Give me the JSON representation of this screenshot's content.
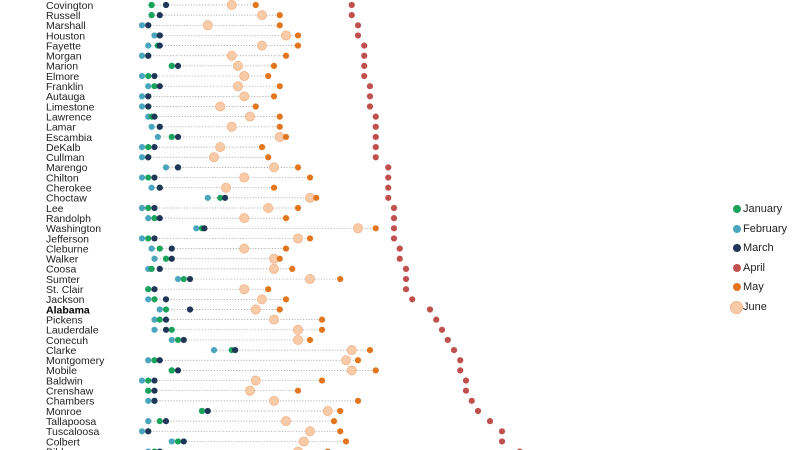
{
  "chart_data": {
    "type": "scatter",
    "title": "",
    "xlabel": "",
    "ylabel": "",
    "xlim": [
      0,
      100
    ],
    "legend_position": "right",
    "categories": [
      "Covington",
      "Russell",
      "Marshall",
      "Houston",
      "Fayette",
      "Morgan",
      "Marion",
      "Elmore",
      "Franklin",
      "Autauga",
      "Limestone",
      "Lawrence",
      "Lamar",
      "Escambia",
      "DeKalb",
      "Cullman",
      "Marengo",
      "Chilton",
      "Cherokee",
      "Choctaw",
      "Lee",
      "Randolph",
      "Washington",
      "Jefferson",
      "Cleburne",
      "Walker",
      "Coosa",
      "Sumter",
      "St. Clair",
      "Jackson",
      "Alabama",
      "Pickens",
      "Lauderdale",
      "Conecuh",
      "Clarke",
      "Montgomery",
      "Mobile",
      "Baldwin",
      "Crenshaw",
      "Chambers",
      "Monroe",
      "Tallapoosa",
      "Tuscaloosa",
      "Colbert",
      "Bibb"
    ],
    "highlight_category": "Alabama",
    "series": [
      {
        "name": "January",
        "color": "#1aa35a",
        "size": "small",
        "values": [
          4.5,
          4.5,
          3.8,
          6.2,
          5.8,
          3.8,
          8.7,
          3.8,
          5.1,
          3.8,
          3.8,
          4.5,
          6.2,
          8.7,
          3.8,
          3.8,
          10,
          3.8,
          6.2,
          18.8,
          3.8,
          5.1,
          15,
          3.8,
          6.2,
          7.5,
          4.5,
          11.2,
          3.8,
          5.1,
          7.5,
          6.2,
          8.7,
          10,
          21.2,
          5.1,
          8.7,
          3.8,
          3.8,
          5.1,
          15,
          6.2,
          3.8,
          10,
          5.1
        ]
      },
      {
        "name": "February",
        "color": "#4aa6be",
        "size": "small",
        "values": [
          4.5,
          4.5,
          2.5,
          5.1,
          3.8,
          2.5,
          8.7,
          2.5,
          3.8,
          2.5,
          2.5,
          3.8,
          4.5,
          5.8,
          2.5,
          2.5,
          7.5,
          2.5,
          4.5,
          16.2,
          2.5,
          3.8,
          13.8,
          2.5,
          4.5,
          5.1,
          3.8,
          10,
          3.8,
          3.8,
          6.2,
          5.1,
          5.1,
          8.7,
          17.5,
          3.8,
          8.7,
          2.5,
          3.8,
          3.8,
          15,
          3.8,
          2.5,
          8.7,
          3.8
        ]
      },
      {
        "name": "March",
        "color": "#1f3658",
        "size": "small",
        "values": [
          7.5,
          6.2,
          3.8,
          6.2,
          6.2,
          3.8,
          10,
          5.1,
          6.2,
          3.8,
          3.8,
          5.1,
          6.2,
          10,
          5.1,
          3.8,
          10,
          5.1,
          6.2,
          19.8,
          5.1,
          6.2,
          15.5,
          5.1,
          8.7,
          8.7,
          6.2,
          12.5,
          5.1,
          7.5,
          12.5,
          7.5,
          7.5,
          11.2,
          21.9,
          6.2,
          10,
          5.1,
          5.1,
          5.1,
          16.2,
          7.5,
          3.8,
          11.2,
          6.2
        ]
      },
      {
        "name": "April",
        "color": "#c0504d",
        "size": "small",
        "values": [
          46.2,
          46.2,
          47.5,
          47.5,
          48.8,
          48.8,
          48.8,
          48.8,
          50,
          50,
          50,
          51.2,
          51.2,
          51.2,
          51.2,
          51.2,
          53.8,
          53.8,
          53.8,
          53.8,
          55,
          55,
          55,
          55,
          56.2,
          56.2,
          57.5,
          57.5,
          57.5,
          58.8,
          62.5,
          63.8,
          65,
          66.2,
          67.5,
          68.8,
          68.8,
          70,
          70,
          71.2,
          72.5,
          75,
          77.5,
          77.5,
          81.2
        ]
      },
      {
        "name": "May",
        "color": "#e2761e",
        "size": "small",
        "values": [
          26.2,
          31.2,
          31.2,
          35,
          35,
          32.5,
          30,
          28.8,
          31.2,
          30,
          26.2,
          31.2,
          31.2,
          32.5,
          27.5,
          28.8,
          35,
          37.5,
          30,
          38.8,
          35,
          32.5,
          51.2,
          37.5,
          32.5,
          31.2,
          33.8,
          43.8,
          28.8,
          32.5,
          31.2,
          40,
          40,
          37.5,
          50,
          47.5,
          51.2,
          40,
          35,
          47.5,
          43.8,
          42.5,
          43.8,
          45,
          41.2
        ]
      },
      {
        "name": "June",
        "color": "#f8cba8",
        "edge": "#f2b58a",
        "size": "large",
        "values": [
          21.2,
          27.5,
          16.2,
          32.5,
          27.5,
          21.2,
          22.5,
          23.8,
          22.5,
          23.8,
          18.8,
          25,
          21.2,
          31.2,
          18.8,
          17.5,
          30,
          23.8,
          20,
          37.5,
          28.8,
          23.8,
          47.5,
          35,
          23.8,
          30,
          30,
          37.5,
          23.8,
          27.5,
          26.2,
          30,
          35,
          35,
          46.2,
          45,
          46.2,
          26.2,
          25,
          30,
          41.2,
          32.5,
          37.5,
          36.2,
          35
        ]
      }
    ]
  }
}
